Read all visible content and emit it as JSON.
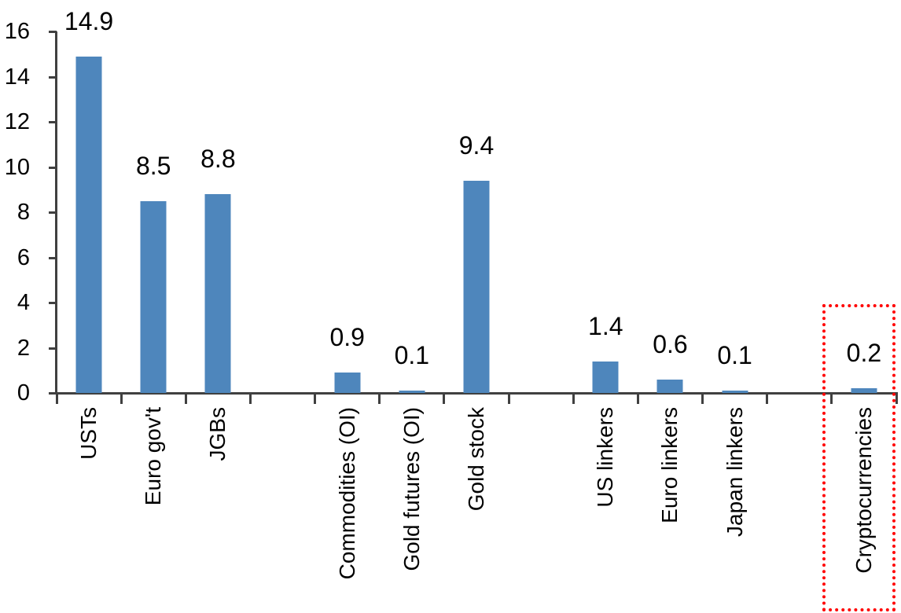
{
  "chart_data": {
    "type": "bar",
    "title": "",
    "xlabel": "",
    "ylabel": "",
    "categories": [
      "USTs",
      "Euro gov't",
      "JGBs",
      "",
      "Commodities (OI)",
      "Gold futures (OI)",
      "Gold stock",
      "",
      "US linkers",
      "Euro linkers",
      "Japan linkers",
      "",
      "Cryptocurrencies"
    ],
    "values": [
      14.9,
      8.5,
      8.8,
      null,
      0.9,
      0.1,
      9.4,
      null,
      1.4,
      0.6,
      0.1,
      null,
      0.2
    ],
    "value_labels": [
      "14.9",
      "8.5",
      "8.8",
      "",
      "0.9",
      "0.1",
      "9.4",
      "",
      "1.4",
      "0.6",
      "0.1",
      "",
      "0.2"
    ],
    "ylim": [
      0,
      16
    ],
    "y_ticks": [
      0,
      2,
      4,
      6,
      8,
      10,
      12,
      14,
      16
    ],
    "grid": false,
    "legend_position": "none",
    "bar_color": "#4E86BC",
    "axis_color": "#404040",
    "text_color": "#000000",
    "background_color": "#FFFFFF",
    "highlight_box": {
      "category": "Cryptocurrencies",
      "border_color": "#FF0000",
      "border_style": "dotted"
    }
  }
}
